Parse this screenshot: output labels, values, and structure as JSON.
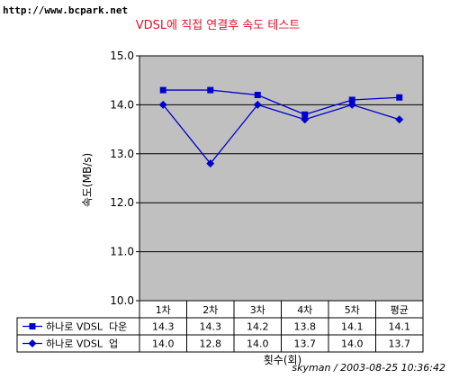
{
  "watermark": "http://www.bcpark.net",
  "credit": "skyman / 2003-08-25 10:36:42",
  "colors": {
    "plot_bg": "#c0c0c0",
    "series": "#0000cc",
    "title": "#e8102a"
  },
  "chart_data": {
    "type": "line",
    "title": "VDSL에 직접 연결후  속도 테스트",
    "ylabel": "속도(MB/s)",
    "xlabel": "횟수(회)",
    "ylim": [
      10.0,
      15.0
    ],
    "yticks": [
      "10.0",
      "11.0",
      "12.0",
      "13.0",
      "14.0",
      "15.0"
    ],
    "grid": true,
    "legend": "table-bottom",
    "categories": [
      "1차",
      "2차",
      "3차",
      "4차",
      "5차",
      "평균"
    ],
    "series": [
      {
        "name": "하나로 VDSL  다운",
        "marker": "square",
        "values": [
          14.3,
          14.3,
          14.2,
          13.8,
          14.1,
          14.15
        ],
        "labels": [
          "14.3",
          "14.3",
          "14.2",
          "13.8",
          "14.1",
          "14.1"
        ]
      },
      {
        "name": "하나로 VDSL  업",
        "marker": "diamond",
        "values": [
          14.0,
          12.8,
          14.0,
          13.7,
          14.0,
          13.7
        ],
        "labels": [
          "14.0",
          "12.8",
          "14.0",
          "13.7",
          "14.0",
          "13.7"
        ]
      }
    ]
  }
}
